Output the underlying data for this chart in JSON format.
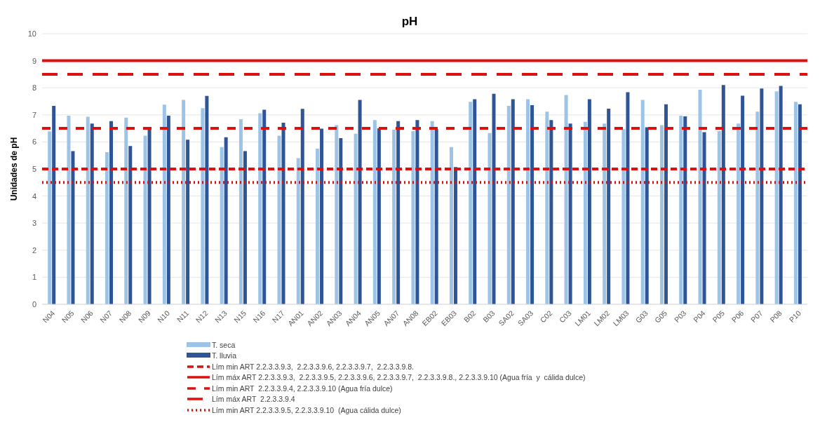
{
  "chart_data": {
    "type": "bar",
    "title": "pH",
    "ylabel": "Unidades de pH",
    "categories": [
      "N04",
      "N05",
      "N06",
      "N07",
      "N08",
      "N09",
      "N10",
      "N11",
      "N12",
      "N13",
      "N15",
      "N16",
      "N17",
      "AN01",
      "AN02",
      "AN03",
      "AN04",
      "AN05",
      "AN07",
      "AN08",
      "EB02",
      "EB03",
      "B02",
      "B03",
      "SA02",
      "SA03",
      "C02",
      "C03",
      "LM01",
      "LM02",
      "LM03",
      "G03",
      "G05",
      "P03",
      "P04",
      "P05",
      "P06",
      "P07",
      "P08",
      "P10"
    ],
    "series": [
      {
        "name": "T. seca",
        "color": "#9dc3e6",
        "values": [
          6.39,
          6.97,
          6.93,
          5.62,
          6.9,
          6.23,
          7.38,
          7.55,
          7.25,
          5.81,
          6.84,
          7.06,
          6.23,
          5.4,
          5.75,
          6.62,
          6.3,
          6.81,
          6.45,
          6.4,
          6.77,
          5.81,
          7.48,
          6.33,
          7.33,
          7.58,
          7.12,
          7.73,
          6.74,
          6.68,
          6.47,
          7.55,
          6.62,
          6.97,
          7.93,
          6.4,
          6.68,
          7.12,
          7.87,
          7.48
        ]
      },
      {
        "name": "T. lluvia",
        "color": "#2f5597",
        "values": [
          7.33,
          5.66,
          6.68,
          6.77,
          5.85,
          6.45,
          6.97,
          6.08,
          7.7,
          6.17,
          5.66,
          7.19,
          6.71,
          7.22,
          6.49,
          6.14,
          7.55,
          6.5,
          6.77,
          6.81,
          6.47,
          5.07,
          7.58,
          7.78,
          7.58,
          7.36,
          6.81,
          6.68,
          7.58,
          7.23,
          7.84,
          6.54,
          7.39,
          6.94,
          6.36,
          8.1,
          7.71,
          7.97,
          8.07,
          7.39
        ]
      }
    ],
    "ylim": [
      0,
      10
    ],
    "yticks": [
      0,
      1,
      2,
      3,
      4,
      5,
      6,
      7,
      8,
      9,
      10
    ],
    "grid": "y",
    "legend": "bottom",
    "ref_lines": [
      {
        "axis": "y",
        "value": 5,
        "label": "Lím min ART 2.2.3.3.9.3,  2.2.3.3.9.6, 2.2.3.3.9.7,  2.2.3.3.9.8.",
        "color": "#dd1010",
        "line_style": "dashed"
      },
      {
        "axis": "y",
        "value": 9,
        "label": "Lím máx ART 2.2.3.3.9.3,  2.2.3.3.9.5, 2.2.3.3.9.6, 2.2.3.3.9.7,  2.2.3.3.9.8., 2.2.3.3.9.10 (Agua fría  y  cálida dulce)",
        "color": "#dd1010",
        "line_style": "solid"
      },
      {
        "axis": "y",
        "value": 6.5,
        "label": "Lím min ART  2.2.3.3.9.4, 2.2.3.3.9.10 (Agua fría dulce)",
        "color": "#dd1010",
        "line_style": "dashed"
      },
      {
        "axis": "y",
        "value": 8.5,
        "label": "Lím máx ART  2.2.3.3.9.4",
        "color": "#dd1010",
        "line_style": "dashed"
      },
      {
        "axis": "y",
        "value": 4.5,
        "label": "Lím min ART 2.2.3.3.9.5, 2.2.3.3.9.10  (Agua cálida dulce)",
        "color": "#dd1010",
        "line_style": "dotted"
      }
    ]
  }
}
